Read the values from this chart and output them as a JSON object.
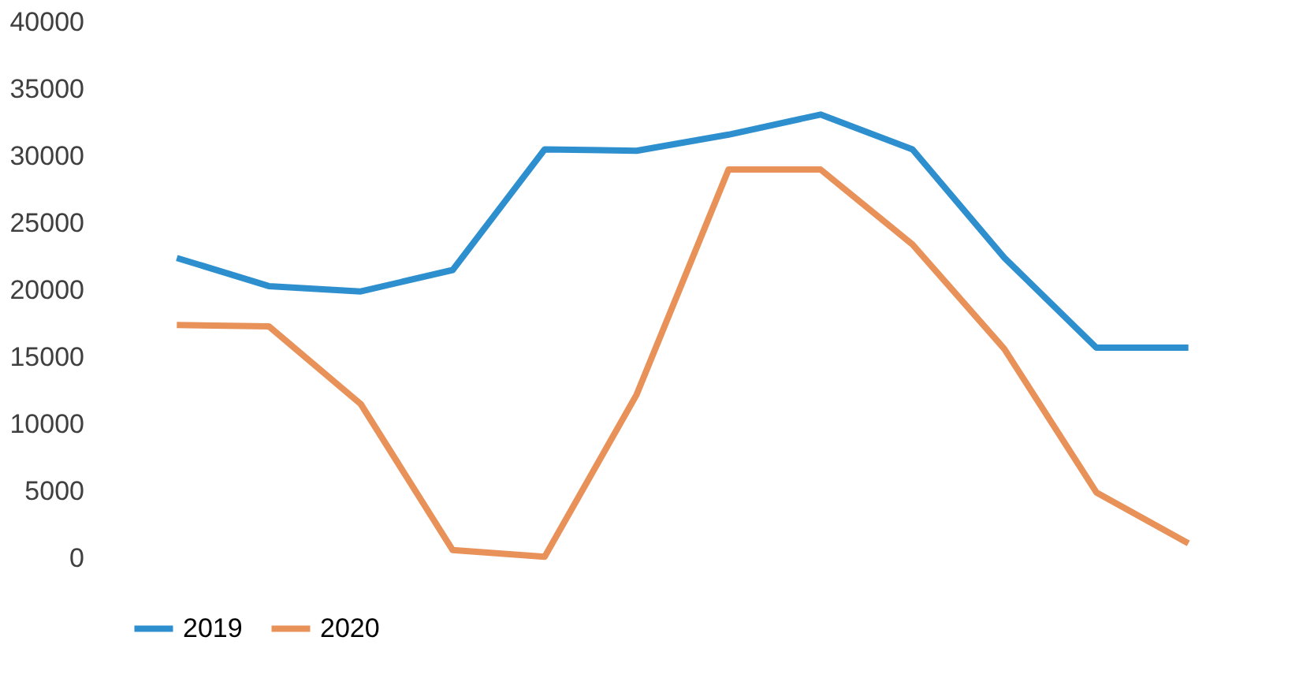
{
  "chart_data": {
    "type": "line",
    "categories": [
      null,
      null,
      null,
      null,
      null,
      null,
      null,
      null,
      null,
      null,
      null,
      null
    ],
    "series": [
      {
        "name": "2019",
        "color": "#2e8fcf",
        "values": [
          22400,
          20300,
          19900,
          21500,
          30500,
          30400,
          31600,
          33100,
          30500,
          22400,
          15700,
          15700
        ]
      },
      {
        "name": "2020",
        "color": "#e8925a",
        "values": [
          17400,
          17300,
          11500,
          600,
          100,
          12200,
          29000,
          29000,
          23400,
          15600,
          4900,
          1100
        ]
      }
    ],
    "ylim": [
      0,
      40000
    ],
    "yticks": [
      0,
      5000,
      10000,
      15000,
      20000,
      25000,
      30000,
      35000,
      40000
    ],
    "grid": false,
    "legend": "bottom",
    "marker": "none",
    "line_style": "solid"
  }
}
